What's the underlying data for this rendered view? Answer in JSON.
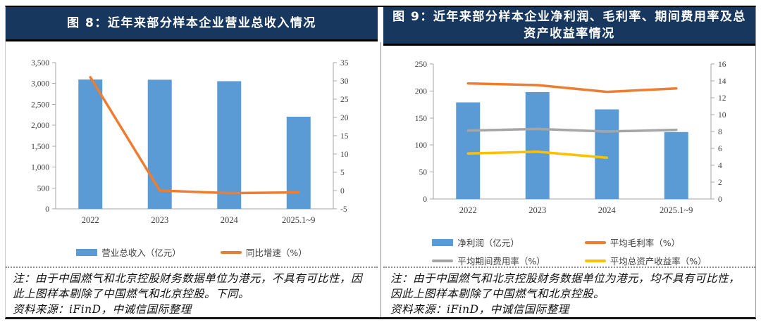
{
  "panels": [
    {
      "title": "图 8：近年来部分样本企业营业总收入情况",
      "note": "注：由于中国燃气和北京控股财务数据单位为港元，不具有可比性，因此上图样本剔除了中国燃气和北京控股。下同。",
      "source": "资料来源：iFinD，中诚信国际整理"
    },
    {
      "title": "图 9：近年来部分样本企业净利润、毛利率、期间费用率及总资产收益率情况",
      "note": "注：由于中国燃气和北京控股财务数据单位为港元，均不具有可比性，因此上图样本剔除了中国燃气和北京控股。",
      "source": "资料来源：iFinD，中诚信国际整理"
    }
  ],
  "style": {
    "header_bg": "#17375E",
    "header_text": "#FFFFFF",
    "axis_color": "#A6A6A6",
    "label_color": "#404040",
    "bar_blue": "#5B9BD5",
    "orange": "#ED7D31",
    "gray": "#A5A5A5",
    "yellow": "#FFC000"
  },
  "chart_data": [
    {
      "type": "bar",
      "title": "近年来部分样本企业营业总收入情况",
      "categories": [
        "2022",
        "2023",
        "2024",
        "2025.1~9"
      ],
      "series": [
        {
          "name": "营业总收入（亿元）",
          "type": "bar",
          "axis": "left",
          "color": "#5B9BD5",
          "values": [
            3095,
            3090,
            3055,
            2205
          ]
        },
        {
          "name": "同比增速（%）",
          "type": "line",
          "axis": "right",
          "color": "#ED7D31",
          "values": [
            31,
            0,
            -0.7,
            -0.5
          ]
        }
      ],
      "left_axis": {
        "min": 0,
        "max": 3500,
        "step": 500,
        "thousands": true
      },
      "right_axis": {
        "min": -5,
        "max": 35,
        "step": 5,
        "thousands": false
      },
      "grid": false,
      "legend_position": "bottom"
    },
    {
      "type": "bar",
      "title": "近年来部分样本企业净利润、毛利率、期间费用率及总资产收益率情况",
      "categories": [
        "2022",
        "2023",
        "2024",
        "2025.1~9"
      ],
      "series": [
        {
          "name": "净利润（亿元）",
          "type": "bar",
          "axis": "left",
          "color": "#5B9BD5",
          "values": [
            179,
            198,
            166,
            124
          ]
        },
        {
          "name": "平均毛利率（%）",
          "type": "line",
          "axis": "right",
          "color": "#ED7D31",
          "values": [
            13.7,
            13.5,
            12.7,
            13.1
          ]
        },
        {
          "name": "平均期间费用率（%）",
          "type": "line",
          "axis": "right",
          "color": "#A5A5A5",
          "values": [
            8.1,
            8.3,
            8.0,
            8.2
          ]
        },
        {
          "name": "平均总资产收益率（%）",
          "type": "line",
          "axis": "right",
          "color": "#FFC000",
          "values": [
            5.4,
            5.6,
            4.9,
            null
          ]
        }
      ],
      "left_axis": {
        "min": 0,
        "max": 250,
        "step": 50,
        "thousands": false
      },
      "right_axis": {
        "min": 0,
        "max": 16,
        "step": 2,
        "thousands": false
      },
      "grid": false,
      "legend_position": "bottom"
    }
  ]
}
